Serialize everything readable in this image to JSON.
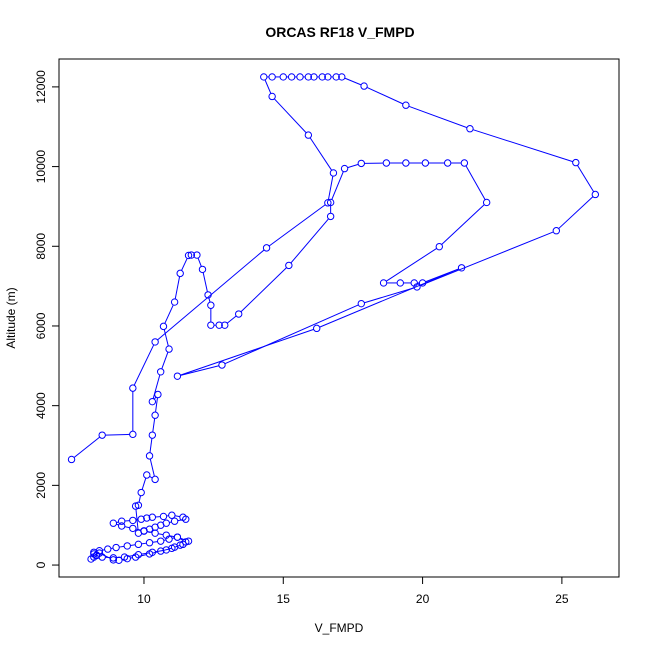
{
  "chart_data": {
    "type": "line",
    "title": "ORCAS RF18 V_FMPD",
    "xlabel": "V_FMPD",
    "ylabel": "Altitude (m)",
    "xlim": [
      6.95,
      27.05
    ],
    "ylim": [
      -300,
      12700
    ],
    "xticks": [
      10,
      15,
      20,
      25
    ],
    "yticks": [
      0,
      2000,
      4000,
      6000,
      8000,
      10000,
      12000
    ],
    "grid": false,
    "legend": "none",
    "color": "#0000ff",
    "series": [
      {
        "marker": "open-circle",
        "x": [
          8.1,
          8.2,
          8.3,
          8.4,
          8.9,
          9.1,
          9.4,
          9.7,
          10.2,
          10.6,
          11.0,
          11.3,
          11.5,
          11.2,
          10.9,
          10.6,
          10.2,
          9.8,
          9.4,
          9.0,
          8.7,
          8.4,
          8.2,
          8.2,
          8.3,
          8.5,
          8.9,
          9.3,
          9.8,
          10.3,
          10.8,
          11.1,
          11.4,
          11.6,
          11.2,
          10.8,
          10.4,
          10.0,
          9.6,
          9.2,
          8.9,
          9.2,
          9.6,
          9.9,
          10.1,
          10.3,
          10.7,
          11.0,
          11.4,
          11.5,
          11.1,
          10.8,
          10.6,
          10.4,
          10.2,
          10.0,
          9.8,
          9.7,
          9.8,
          9.9,
          10.1,
          10.4,
          10.2,
          10.3,
          10.4,
          10.5,
          10.3,
          10.6,
          10.9,
          10.7,
          11.1,
          11.3,
          11.6,
          11.7,
          11.9,
          12.1,
          12.3,
          12.4,
          12.4,
          12.7,
          12.9,
          13.4,
          15.2,
          16.7,
          16.7,
          17.2,
          17.8,
          18.7,
          19.4,
          20.1,
          20.9,
          21.5,
          22.3,
          20.6,
          18.6,
          19.2,
          19.7,
          20.0,
          21.4,
          16.2,
          11.2,
          12.8,
          17.8,
          19.8,
          24.8,
          26.2,
          25.5,
          21.7,
          19.4,
          17.9,
          17.1,
          16.9,
          16.6,
          16.4,
          16.1,
          15.9,
          15.6,
          15.3,
          15.0,
          14.6,
          14.3,
          14.6,
          15.9,
          16.8,
          16.6,
          14.4,
          10.4,
          9.6,
          9.6,
          8.5,
          7.4
        ],
        "y": [
          150,
          200,
          250,
          300,
          130,
          120,
          160,
          200,
          280,
          350,
          420,
          500,
          580,
          700,
          650,
          600,
          560,
          520,
          480,
          440,
          400,
          360,
          320,
          280,
          240,
          200,
          180,
          200,
          260,
          320,
          380,
          450,
          520,
          600,
          700,
          750,
          800,
          860,
          920,
          980,
          1050,
          1100,
          1120,
          1150,
          1180,
          1200,
          1220,
          1250,
          1200,
          1150,
          1100,
          1050,
          1000,
          950,
          900,
          850,
          800,
          1480,
          1500,
          1820,
          2260,
          2150,
          2740,
          3260,
          3760,
          4280,
          4100,
          4850,
          5420,
          5990,
          6600,
          7320,
          7770,
          7780,
          7780,
          7420,
          6780,
          6520,
          6020,
          6020,
          6020,
          6300,
          7520,
          8750,
          9100,
          9950,
          10080,
          10090,
          10090,
          10090,
          10090,
          10090,
          9100,
          7990,
          7080,
          7080,
          7080,
          7080,
          7460,
          5940,
          4740,
          5020,
          6560,
          6980,
          8390,
          9300,
          10100,
          10950,
          11540,
          12020,
          12250,
          12250,
          12250,
          12250,
          12250,
          12250,
          12250,
          12250,
          12250,
          12250,
          12250,
          11760,
          10790,
          9840,
          9090,
          7960,
          5600,
          4440,
          3280,
          3260,
          2650
        ]
      }
    ]
  }
}
